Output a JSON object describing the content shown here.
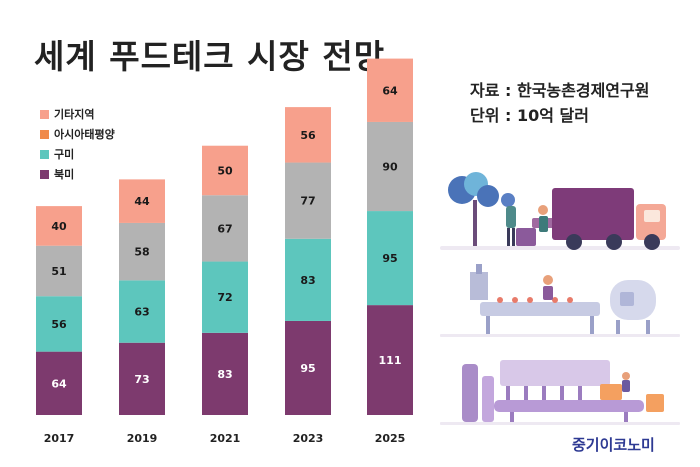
{
  "title": "세계 푸드테크 시장 전망",
  "source_line": "자료 : 한국농촌경제연구원",
  "unit_line": "단위 : 10억 달러",
  "brand": "중기이코노미",
  "colors": {
    "기타지역": "#f7a08c",
    "아시아태평양": "#b3b3b3",
    "구미": "#5dc6bd",
    "북미": "#7d3a6e"
  },
  "chart_data": {
    "type": "bar",
    "stacked": true,
    "categories": [
      "2017",
      "2019",
      "2021",
      "2023",
      "2025"
    ],
    "series": [
      {
        "name": "북미",
        "values": [
          64,
          73,
          83,
          95,
          111
        ]
      },
      {
        "name": "구미",
        "values": [
          56,
          63,
          72,
          83,
          95
        ]
      },
      {
        "name": "아시아태평양",
        "values": [
          51,
          58,
          67,
          77,
          90
        ]
      },
      {
        "name": "기타지역",
        "values": [
          40,
          44,
          50,
          56,
          64
        ]
      }
    ],
    "legend_order": [
      "기타지역",
      "아시아태평양",
      "구미",
      "북미"
    ],
    "legend_placement": "top-left",
    "grid": false
  }
}
